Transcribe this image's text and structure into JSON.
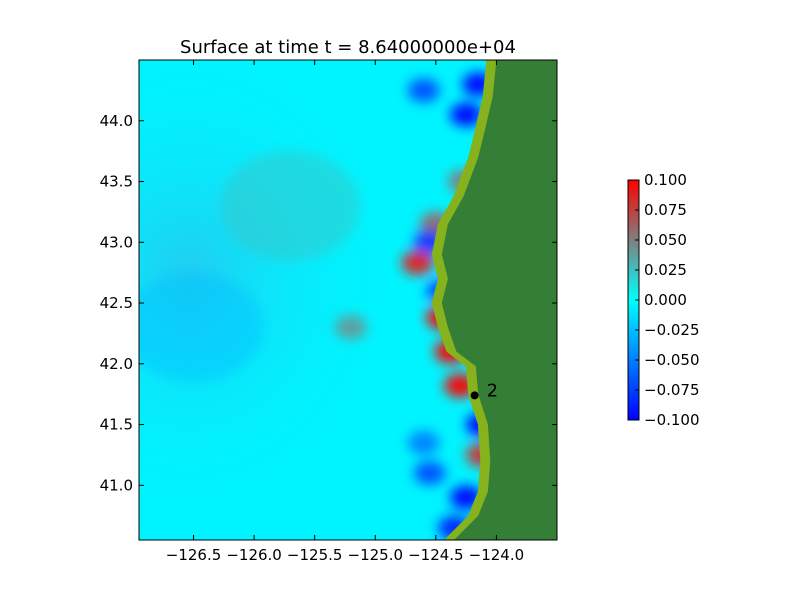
{
  "chart_data": {
    "type": "heatmap",
    "title": "Surface at time t = 8.64000000e+04",
    "xlabel": "",
    "ylabel": "",
    "xlim": [
      -126.95,
      -123.5
    ],
    "ylim": [
      40.55,
      44.5
    ],
    "x_ticks": [
      {
        "value": -126.5,
        "label": "−126.5"
      },
      {
        "value": -126.0,
        "label": "−126.0"
      },
      {
        "value": -125.5,
        "label": "−125.5"
      },
      {
        "value": -125.0,
        "label": "−125.0"
      },
      {
        "value": -124.5,
        "label": "−124.5"
      },
      {
        "value": -124.0,
        "label": "−124.0"
      }
    ],
    "y_ticks": [
      {
        "value": 41.0,
        "label": "41.0"
      },
      {
        "value": 41.5,
        "label": "41.5"
      },
      {
        "value": 42.0,
        "label": "42.0"
      },
      {
        "value": 42.5,
        "label": "42.5"
      },
      {
        "value": 43.0,
        "label": "43.0"
      },
      {
        "value": 43.5,
        "label": "43.5"
      },
      {
        "value": 44.0,
        "label": "44.0"
      }
    ],
    "colorbar": {
      "min": -0.1,
      "max": 0.1,
      "colors": [
        "#0000ff",
        "#00ffff",
        "#ff0000"
      ],
      "ticks": [
        {
          "value": 0.1,
          "label": "0.100"
        },
        {
          "value": 0.075,
          "label": "0.075"
        },
        {
          "value": 0.05,
          "label": "0.050"
        },
        {
          "value": 0.025,
          "label": "0.025"
        },
        {
          "value": 0.0,
          "label": "0.000"
        },
        {
          "value": -0.025,
          "label": "−0.025"
        },
        {
          "value": -0.05,
          "label": "−0.050"
        },
        {
          "value": -0.075,
          "label": "−0.075"
        },
        {
          "value": -0.1,
          "label": "−0.100"
        }
      ]
    },
    "land_colors": {
      "land": "#357e35",
      "shore": "#86b21d"
    },
    "gauges": [
      {
        "label": "2",
        "x": -124.18,
        "y": 41.74
      }
    ],
    "anomalies": [
      {
        "x": -124.15,
        "y": 44.3,
        "value": -0.1
      },
      {
        "x": -124.25,
        "y": 44.05,
        "value": -0.1
      },
      {
        "x": -124.6,
        "y": 44.25,
        "value": -0.07
      },
      {
        "x": -124.27,
        "y": 43.5,
        "value": 0.05
      },
      {
        "x": -124.5,
        "y": 43.15,
        "value": 0.06
      },
      {
        "x": -124.55,
        "y": 43.0,
        "value": -0.08
      },
      {
        "x": -124.65,
        "y": 42.83,
        "value": 0.09
      },
      {
        "x": -124.45,
        "y": 42.6,
        "value": -0.07
      },
      {
        "x": -124.45,
        "y": 42.38,
        "value": 0.1
      },
      {
        "x": -124.38,
        "y": 42.1,
        "value": 0.1
      },
      {
        "x": -124.3,
        "y": 41.82,
        "value": 0.1
      },
      {
        "x": -124.12,
        "y": 41.5,
        "value": -0.1
      },
      {
        "x": -124.12,
        "y": 41.25,
        "value": 0.08
      },
      {
        "x": -124.25,
        "y": 40.9,
        "value": -0.1
      },
      {
        "x": -124.55,
        "y": 41.1,
        "value": -0.07
      },
      {
        "x": -124.6,
        "y": 41.35,
        "value": -0.05
      },
      {
        "x": -124.35,
        "y": 40.65,
        "value": -0.09
      },
      {
        "x": -125.2,
        "y": 42.3,
        "value": 0.04
      },
      {
        "x": -125.7,
        "y": 43.3,
        "value": 0.025
      },
      {
        "x": -126.5,
        "y": 42.3,
        "value": -0.025
      }
    ],
    "coastline": [
      [
        -124.05,
        44.5
      ],
      [
        -124.08,
        44.2
      ],
      [
        -124.15,
        43.9
      ],
      [
        -124.2,
        43.7
      ],
      [
        -124.32,
        43.38
      ],
      [
        -124.45,
        43.15
      ],
      [
        -124.5,
        42.9
      ],
      [
        -124.45,
        42.7
      ],
      [
        -124.5,
        42.5
      ],
      [
        -124.45,
        42.3
      ],
      [
        -124.38,
        42.1
      ],
      [
        -124.22,
        41.98
      ],
      [
        -124.2,
        41.75
      ],
      [
        -124.12,
        41.5
      ],
      [
        -124.1,
        41.2
      ],
      [
        -124.12,
        40.95
      ],
      [
        -124.2,
        40.75
      ],
      [
        -124.4,
        40.55
      ]
    ]
  }
}
